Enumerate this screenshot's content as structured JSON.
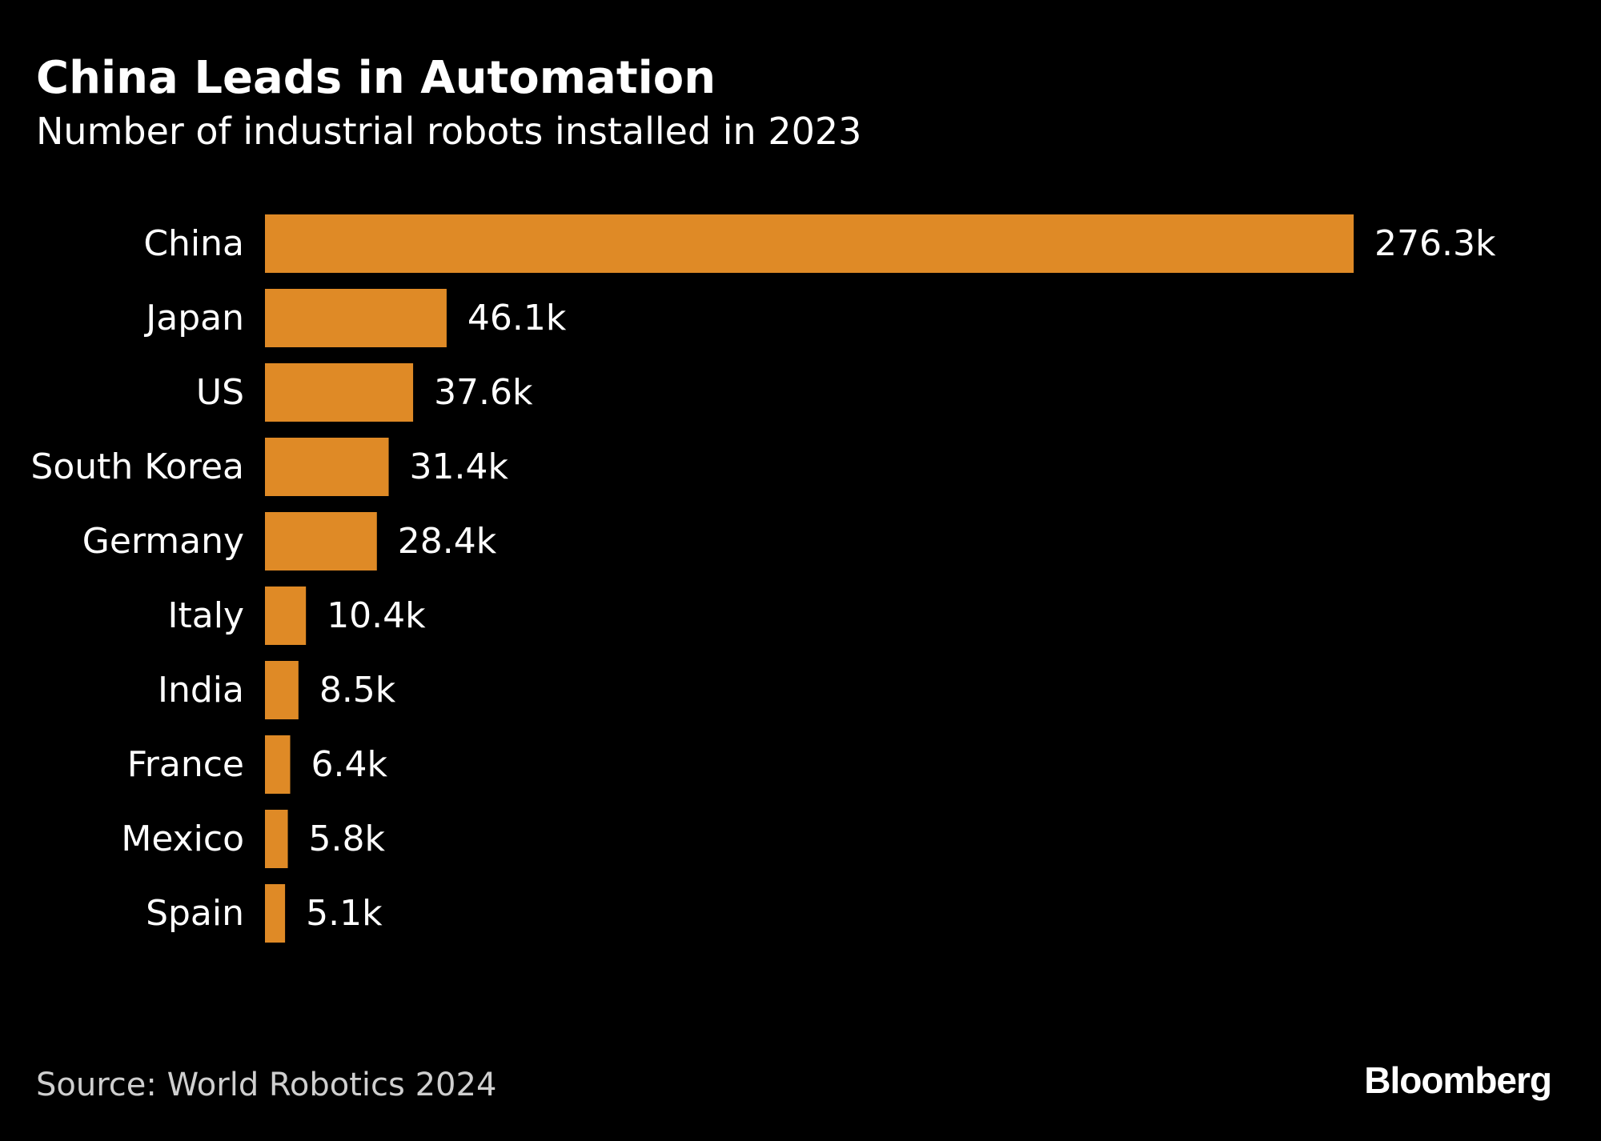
{
  "colors": {
    "background": "#000000",
    "bar": "#df8a26",
    "text": "#ffffff",
    "source_text": "#cfcfcf"
  },
  "source": "Source: World Robotics 2024",
  "logo": "Bloomberg",
  "chart_data": {
    "type": "bar",
    "orientation": "horizontal",
    "title": "China Leads in Automation",
    "subtitle": "Number of industrial robots installed in 2023",
    "categories": [
      "China",
      "Japan",
      "US",
      "South Korea",
      "Germany",
      "Italy",
      "India",
      "France",
      "Mexico",
      "Spain"
    ],
    "values": [
      276.3,
      46.1,
      37.6,
      31.4,
      28.4,
      10.4,
      8.5,
      6.4,
      5.8,
      5.1
    ],
    "value_labels": [
      "276.3k",
      "46.1k",
      "37.6k",
      "31.4k",
      "28.4k",
      "10.4k",
      "8.5k",
      "6.4k",
      "5.8k",
      "5.1k"
    ],
    "xlim": [
      0,
      276.3
    ],
    "grid": false,
    "legend": "none"
  }
}
